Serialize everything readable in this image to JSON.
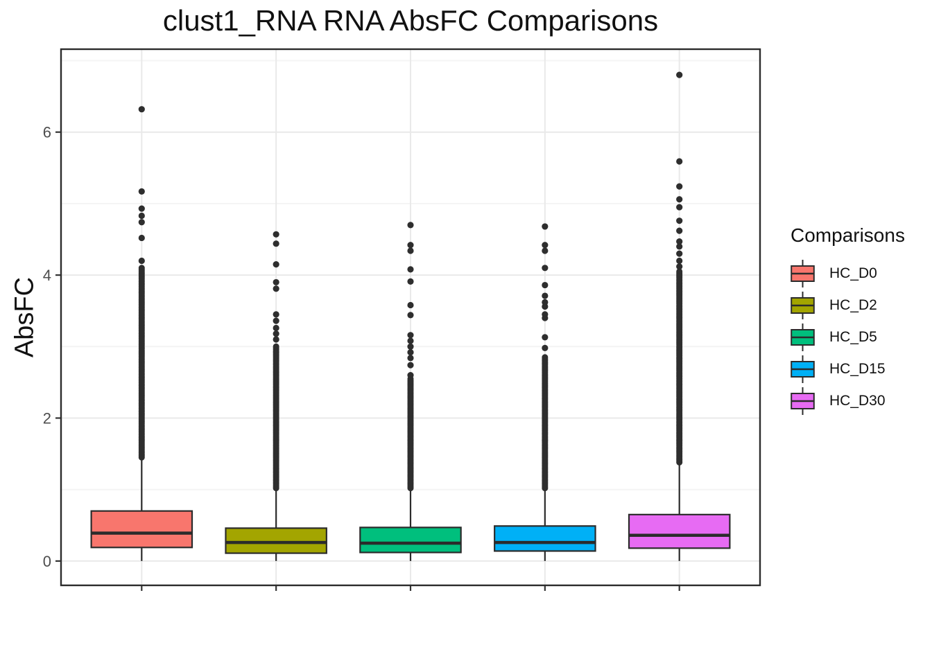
{
  "chart_data": {
    "type": "boxplot",
    "title": "clust1_RNA RNA AbsFC Comparisons",
    "ylabel": "AbsFC",
    "xlabel": "",
    "legend_title": "Comparisons",
    "legend_position": "right",
    "ylim": [
      -0.34,
      7.16
    ],
    "yticks_major": [
      0,
      2,
      4,
      6
    ],
    "yticks_minor": [
      1,
      3,
      5,
      7
    ],
    "grid": "major+minor horizontal, major vertical at categories",
    "x_axis_labels_visible": false,
    "series": [
      {
        "name": "HC_D0",
        "color": "#F8766D",
        "whisker_low": 0.0,
        "q1": 0.19,
        "median": 0.39,
        "q3": 0.7,
        "whisker_high": 1.42,
        "outlier_dense_range": [
          1.45,
          4.1
        ],
        "outliers": [
          4.2,
          4.52,
          4.74,
          4.83,
          4.93,
          5.17,
          6.32
        ]
      },
      {
        "name": "HC_D2",
        "color": "#A3A500",
        "whisker_low": 0.0,
        "q1": 0.11,
        "median": 0.26,
        "q3": 0.46,
        "whisker_high": 1.0,
        "outlier_dense_range": [
          1.02,
          3.0
        ],
        "outliers": [
          3.1,
          3.18,
          3.26,
          3.36,
          3.45,
          3.81,
          3.9,
          4.15,
          4.44,
          4.57
        ]
      },
      {
        "name": "HC_D5",
        "color": "#00BF7D",
        "whisker_low": 0.0,
        "q1": 0.12,
        "median": 0.25,
        "q3": 0.47,
        "whisker_high": 1.0,
        "outlier_dense_range": [
          1.02,
          2.55
        ],
        "outliers": [
          2.6,
          2.74,
          2.84,
          2.92,
          3.0,
          3.08,
          3.16,
          3.44,
          3.58,
          3.91,
          4.08,
          4.34,
          4.42,
          4.7
        ]
      },
      {
        "name": "HC_D15",
        "color": "#00B0F6",
        "whisker_low": 0.0,
        "q1": 0.14,
        "median": 0.26,
        "q3": 0.49,
        "whisker_high": 1.0,
        "outlier_dense_range": [
          1.02,
          2.85
        ],
        "outliers": [
          2.98,
          3.13,
          3.4,
          3.45,
          3.56,
          3.62,
          3.71,
          3.86,
          4.1,
          4.34,
          4.42,
          4.68
        ]
      },
      {
        "name": "HC_D30",
        "color": "#E76BF3",
        "whisker_low": 0.0,
        "q1": 0.18,
        "median": 0.36,
        "q3": 0.65,
        "whisker_high": 1.36,
        "outlier_dense_range": [
          1.38,
          4.05
        ],
        "outliers": [
          4.12,
          4.2,
          4.3,
          4.4,
          4.47,
          4.62,
          4.76,
          4.95,
          5.06,
          5.24,
          5.59,
          6.8
        ]
      }
    ],
    "styles": {
      "box_border": "#2b2b2b",
      "median_line": "#2b2b2b",
      "outlier_dot": "#2e2e2e",
      "grid_major": "#e9e9e9",
      "grid_minor": "#f4f4f4",
      "panel_border": "#2b2b2b",
      "tick_mark": "#333333",
      "axis_text": "#4d4d4d"
    }
  }
}
